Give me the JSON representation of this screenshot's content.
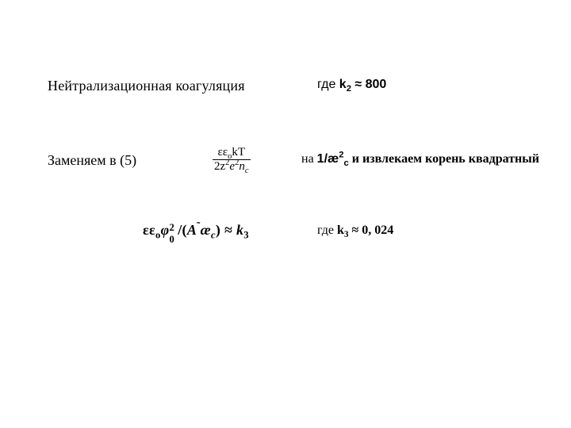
{
  "row1": {
    "title": "Нейтрализационная коагуляция",
    "where_prefix": "где ",
    "k_label": "k",
    "k_sub": "2",
    "approx": " ≈ ",
    "k_value": "800"
  },
  "row2": {
    "replace_label": "Заменяем в (5)",
    "frac_num_prefix": "εε",
    "frac_num_sub": "o",
    "frac_num_rest": "kT",
    "frac_den_prefix": "2z",
    "frac_den_sup1": "2",
    "frac_den_mid": "e",
    "frac_den_sup2": "2",
    "frac_den_n": "n",
    "frac_den_nsub": "c",
    "right_prefix": "на ",
    "inv_text": "1/æ",
    "inv_sup": "2",
    "inv_sub": "c",
    "right_suffix": " и извлекаем корень квадратный"
  },
  "row3": {
    "f_prefix": "εε",
    "f_o": "o",
    "f_phi": "φ",
    "f_phi_sup": "2",
    "f_phi_sub": "0",
    "f_div": "/",
    "f_open": "(",
    "f_A": "A",
    "f_tilde": "˜",
    "f_ae": "æ",
    "f_c": "c",
    "f_close": ")",
    "f_approx": " ≈ ",
    "f_k": "k",
    "f_ksub": "3",
    "where_prefix": "где ",
    "k_label": "k",
    "k_sub": "3",
    "approx": " ≈ ",
    "k_value": "0, 024"
  }
}
